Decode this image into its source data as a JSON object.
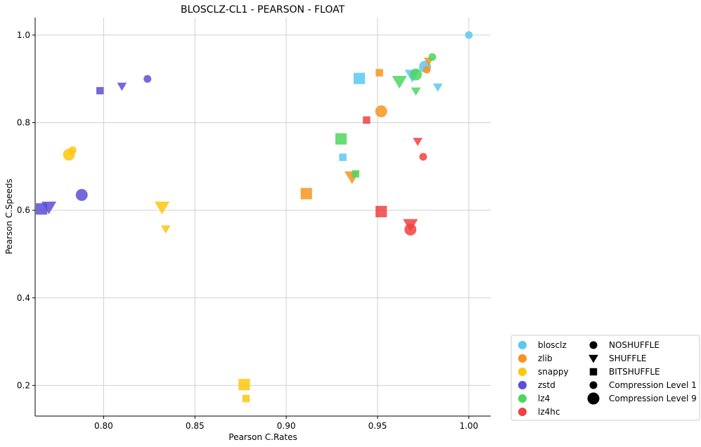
{
  "chart_data": {
    "type": "scatter",
    "title": "BLOSCLZ-CL1 - PEARSON - FLOAT",
    "xlabel": "Pearson C.Rates",
    "ylabel": "Pearson C.Speeds",
    "xlim": [
      0.7625,
      1.012
    ],
    "ylim": [
      0.13,
      1.04
    ],
    "xticks": [
      "0.80",
      "0.85",
      "0.90",
      "0.95",
      "1.00"
    ],
    "yticks": [
      "0.2",
      "0.4",
      "0.6",
      "0.8",
      "1.0"
    ],
    "grid": true,
    "legend_position": "outside bottom-right",
    "codec_colors": {
      "blosclz": "#5bc8f0",
      "zlib": "#f7941d",
      "snappy": "#fdc70c",
      "zstd": "#5a4fd6",
      "lz4": "#4cd65f",
      "lz4hc": "#f24141"
    },
    "points": [
      {
        "codec": "blosclz",
        "shuffle": "NOSHUFFLE",
        "level": 1,
        "x": 1.0,
        "y": 1.0
      },
      {
        "codec": "blosclz",
        "shuffle": "NOSHUFFLE",
        "level": 9,
        "x": 0.976,
        "y": 0.928
      },
      {
        "codec": "blosclz",
        "shuffle": "SHUFFLE",
        "level": 1,
        "x": 0.983,
        "y": 0.881
      },
      {
        "codec": "blosclz",
        "shuffle": "SHUFFLE",
        "level": 9,
        "x": 0.969,
        "y": 0.908
      },
      {
        "codec": "blosclz",
        "shuffle": "BITSHUFFLE",
        "level": 1,
        "x": 0.931,
        "y": 0.721
      },
      {
        "codec": "blosclz",
        "shuffle": "BITSHUFFLE",
        "level": 9,
        "x": 0.94,
        "y": 0.901
      },
      {
        "codec": "zlib",
        "shuffle": "NOSHUFFLE",
        "level": 1,
        "x": 0.977,
        "y": 0.921
      },
      {
        "codec": "zlib",
        "shuffle": "NOSHUFFLE",
        "level": 9,
        "x": 0.952,
        "y": 0.826
      },
      {
        "codec": "zlib",
        "shuffle": "SHUFFLE",
        "level": 1,
        "x": 0.978,
        "y": 0.94
      },
      {
        "codec": "zlib",
        "shuffle": "SHUFFLE",
        "level": 9,
        "x": 0.936,
        "y": 0.676
      },
      {
        "codec": "zlib",
        "shuffle": "BITSHUFFLE",
        "level": 1,
        "x": 0.951,
        "y": 0.914
      },
      {
        "codec": "zlib",
        "shuffle": "BITSHUFFLE",
        "level": 9,
        "x": 0.911,
        "y": 0.638
      },
      {
        "codec": "snappy",
        "shuffle": "NOSHUFFLE",
        "level": 1,
        "x": 0.783,
        "y": 0.737
      },
      {
        "codec": "snappy",
        "shuffle": "NOSHUFFLE",
        "level": 9,
        "x": 0.781,
        "y": 0.727
      },
      {
        "codec": "snappy",
        "shuffle": "SHUFFLE",
        "level": 1,
        "x": 0.834,
        "y": 0.557
      },
      {
        "codec": "snappy",
        "shuffle": "SHUFFLE",
        "level": 9,
        "x": 0.832,
        "y": 0.607
      },
      {
        "codec": "snappy",
        "shuffle": "BITSHUFFLE",
        "level": 1,
        "x": 0.878,
        "y": 0.17
      },
      {
        "codec": "snappy",
        "shuffle": "BITSHUFFLE",
        "level": 9,
        "x": 0.877,
        "y": 0.202
      },
      {
        "codec": "zstd",
        "shuffle": "NOSHUFFLE",
        "level": 1,
        "x": 0.824,
        "y": 0.9
      },
      {
        "codec": "zstd",
        "shuffle": "NOSHUFFLE",
        "level": 9,
        "x": 0.788,
        "y": 0.635
      },
      {
        "codec": "zstd",
        "shuffle": "SHUFFLE",
        "level": 1,
        "x": 0.81,
        "y": 0.883
      },
      {
        "codec": "zstd",
        "shuffle": "SHUFFLE",
        "level": 9,
        "x": 0.77,
        "y": 0.607
      },
      {
        "codec": "zstd",
        "shuffle": "BITSHUFFLE",
        "level": 1,
        "x": 0.798,
        "y": 0.873
      },
      {
        "codec": "zstd",
        "shuffle": "BITSHUFFLE",
        "level": 9,
        "x": 0.766,
        "y": 0.603
      },
      {
        "codec": "lz4",
        "shuffle": "NOSHUFFLE",
        "level": 1,
        "x": 0.98,
        "y": 0.95
      },
      {
        "codec": "lz4",
        "shuffle": "NOSHUFFLE",
        "level": 9,
        "x": 0.971,
        "y": 0.91
      },
      {
        "codec": "lz4",
        "shuffle": "SHUFFLE",
        "level": 1,
        "x": 0.971,
        "y": 0.872
      },
      {
        "codec": "lz4",
        "shuffle": "SHUFFLE",
        "level": 9,
        "x": 0.962,
        "y": 0.894
      },
      {
        "codec": "lz4",
        "shuffle": "BITSHUFFLE",
        "level": 1,
        "x": 0.938,
        "y": 0.683
      },
      {
        "codec": "lz4",
        "shuffle": "BITSHUFFLE",
        "level": 9,
        "x": 0.93,
        "y": 0.763
      },
      {
        "codec": "lz4hc",
        "shuffle": "NOSHUFFLE",
        "level": 1,
        "x": 0.975,
        "y": 0.722
      },
      {
        "codec": "lz4hc",
        "shuffle": "NOSHUFFLE",
        "level": 9,
        "x": 0.968,
        "y": 0.556
      },
      {
        "codec": "lz4hc",
        "shuffle": "SHUFFLE",
        "level": 1,
        "x": 0.972,
        "y": 0.757
      },
      {
        "codec": "lz4hc",
        "shuffle": "SHUFFLE",
        "level": 9,
        "x": 0.968,
        "y": 0.567
      },
      {
        "codec": "lz4hc",
        "shuffle": "BITSHUFFLE",
        "level": 1,
        "x": 0.944,
        "y": 0.806
      },
      {
        "codec": "lz4hc",
        "shuffle": "BITSHUFFLE",
        "level": 9,
        "x": 0.952,
        "y": 0.597
      }
    ],
    "legend": {
      "codecs": [
        "blosclz",
        "zlib",
        "snappy",
        "zstd",
        "lz4",
        "lz4hc"
      ],
      "shuffles": [
        "NOSHUFFLE",
        "SHUFFLE",
        "BITSHUFFLE"
      ],
      "levels": [
        "Compression Level 1",
        "Compression Level 9"
      ]
    }
  }
}
